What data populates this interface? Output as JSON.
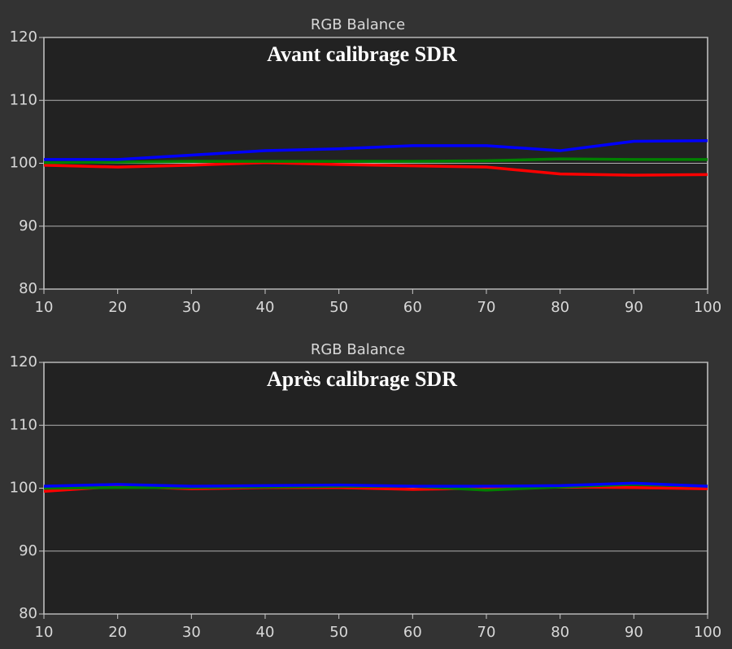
{
  "chart_data": [
    {
      "type": "line",
      "title": "RGB Balance",
      "annotation": "Avant calibrage SDR",
      "x": [
        10,
        20,
        30,
        40,
        50,
        60,
        70,
        80,
        90,
        100
      ],
      "series": [
        {
          "color": "#ff0000",
          "values": [
            99.7,
            99.4,
            99.7,
            100.1,
            99.8,
            99.6,
            99.4,
            98.3,
            98.1,
            98.2
          ]
        },
        {
          "color": "#008000",
          "values": [
            100.1,
            100.2,
            100.3,
            100.3,
            100.3,
            100.3,
            100.4,
            100.7,
            100.6,
            100.6
          ]
        },
        {
          "color": "#0000ff",
          "values": [
            100.6,
            100.6,
            101.3,
            102.0,
            102.3,
            102.8,
            102.8,
            102.0,
            103.5,
            103.6
          ]
        }
      ],
      "xlim": [
        10,
        100
      ],
      "xticks": [
        10,
        20,
        30,
        40,
        50,
        60,
        70,
        80,
        90,
        100
      ],
      "ylim": [
        80,
        120
      ],
      "yticks": [
        80,
        90,
        100,
        110,
        120
      ],
      "grid": true
    },
    {
      "type": "line",
      "title": "RGB Balance",
      "annotation": "Après calibrage SDR",
      "x": [
        10,
        20,
        30,
        40,
        50,
        60,
        70,
        80,
        90,
        100
      ],
      "series": [
        {
          "color": "#ff0000",
          "values": [
            99.5,
            100.3,
            99.9,
            100.1,
            100.1,
            99.8,
            100.0,
            100.2,
            100.1,
            99.9
          ]
        },
        {
          "color": "#008000",
          "values": [
            100.0,
            100.1,
            100.1,
            100.2,
            100.3,
            100.3,
            99.7,
            100.2,
            100.6,
            100.3
          ]
        },
        {
          "color": "#0000ff",
          "values": [
            100.3,
            100.6,
            100.3,
            100.4,
            100.5,
            100.3,
            100.3,
            100.4,
            100.8,
            100.3
          ]
        }
      ],
      "xlim": [
        10,
        100
      ],
      "xticks": [
        10,
        20,
        30,
        40,
        50,
        60,
        70,
        80,
        90,
        100
      ],
      "ylim": [
        80,
        120
      ],
      "yticks": [
        80,
        90,
        100,
        110,
        120
      ],
      "grid": true
    }
  ]
}
